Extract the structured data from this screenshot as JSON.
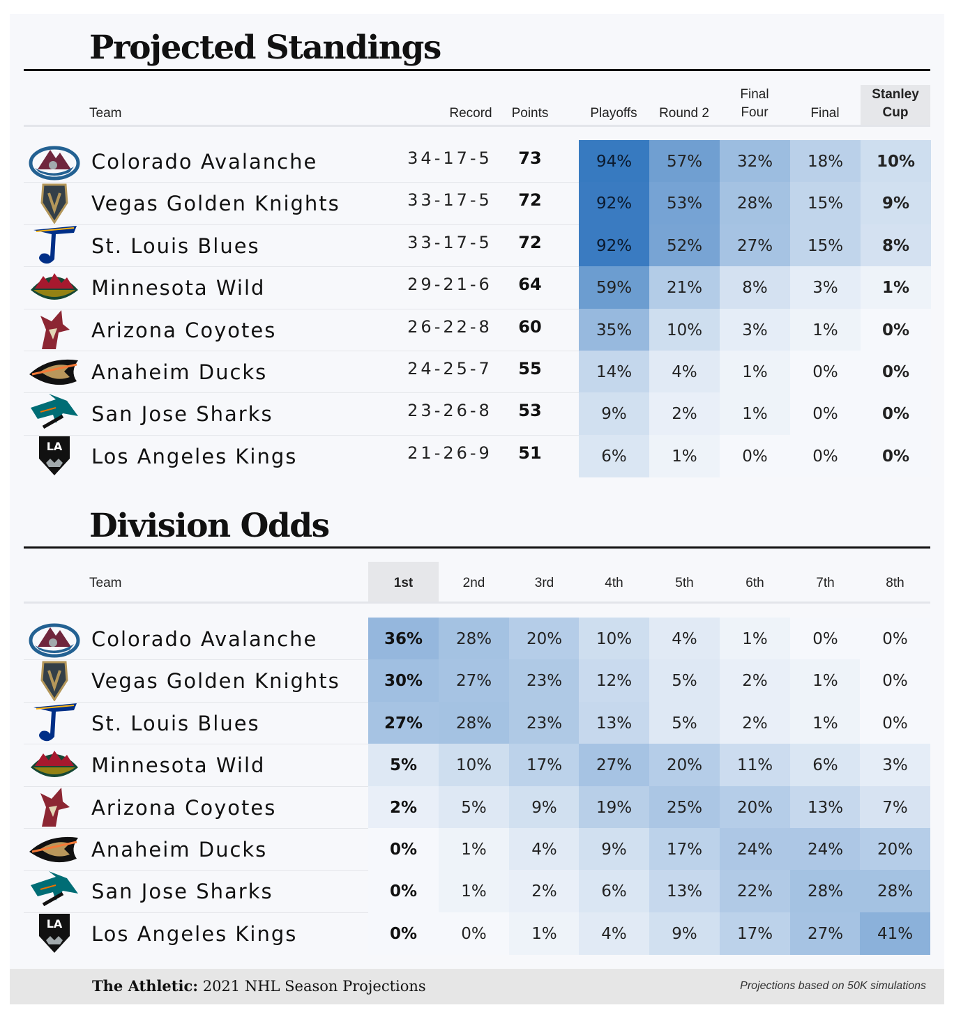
{
  "standings": {
    "title": "Projected Standings",
    "headers": {
      "team": "Team",
      "record": "Record",
      "points": "Points",
      "playoffs": "Playoffs",
      "round2": "Round 2",
      "final_four_1": "Final",
      "final_four_2": "Four",
      "final": "Final",
      "cup_1": "Stanley",
      "cup_2": "Cup"
    }
  },
  "division": {
    "title": "Division Odds",
    "headers": {
      "team": "Team",
      "places": [
        "1st",
        "2nd",
        "3rd",
        "4th",
        "5th",
        "6th",
        "7th",
        "8th"
      ]
    }
  },
  "footer": {
    "brand": "The Athletic:",
    "subtitle": "2021 NHL Season Projections",
    "note": "Projections based on 50K simulations"
  },
  "teams": [
    {
      "name": "Colorado Avalanche",
      "logo": "colorado-avalanche-logo"
    },
    {
      "name": "Vegas Golden Knights",
      "logo": "vegas-golden-knights-logo"
    },
    {
      "name": "St. Louis Blues",
      "logo": "st-louis-blues-logo"
    },
    {
      "name": "Minnesota Wild",
      "logo": "minnesota-wild-logo"
    },
    {
      "name": "Arizona Coyotes",
      "logo": "arizona-coyotes-logo"
    },
    {
      "name": "Anaheim Ducks",
      "logo": "anaheim-ducks-logo"
    },
    {
      "name": "San Jose Sharks",
      "logo": "san-jose-sharks-logo"
    },
    {
      "name": "Los Angeles Kings",
      "logo": "los-angeles-kings-logo"
    }
  ],
  "chart_data": [
    {
      "type": "table",
      "title": "Projected Standings",
      "columns": [
        "Team",
        "Record",
        "Points",
        "Playoffs",
        "Round 2",
        "Final Four",
        "Final",
        "Stanley Cup"
      ],
      "rows": [
        [
          "Colorado Avalanche",
          "34-17-5",
          73,
          94,
          57,
          32,
          18,
          10
        ],
        [
          "Vegas Golden Knights",
          "33-17-5",
          72,
          92,
          53,
          28,
          15,
          9
        ],
        [
          "St. Louis Blues",
          "33-17-5",
          72,
          92,
          52,
          27,
          15,
          8
        ],
        [
          "Minnesota Wild",
          "29-21-6",
          64,
          59,
          21,
          8,
          3,
          1
        ],
        [
          "Arizona Coyotes",
          "26-22-8",
          60,
          35,
          10,
          3,
          1,
          0
        ],
        [
          "Anaheim Ducks",
          "24-25-7",
          55,
          14,
          4,
          1,
          0,
          0
        ],
        [
          "San Jose Sharks",
          "23-26-8",
          53,
          9,
          2,
          1,
          0,
          0
        ],
        [
          "Los Angeles Kings",
          "21-26-9",
          51,
          6,
          1,
          0,
          0,
          0
        ]
      ],
      "value_unit": "%",
      "heat_color": "#2f74bd"
    },
    {
      "type": "heatmap",
      "title": "Division Odds",
      "columns": [
        "1st",
        "2nd",
        "3rd",
        "4th",
        "5th",
        "6th",
        "7th",
        "8th"
      ],
      "rows": [
        [
          "Colorado Avalanche",
          36,
          28,
          20,
          10,
          4,
          1,
          0,
          0
        ],
        [
          "Vegas Golden Knights",
          30,
          27,
          23,
          12,
          5,
          2,
          1,
          0
        ],
        [
          "St. Louis Blues",
          27,
          28,
          23,
          13,
          5,
          2,
          1,
          0
        ],
        [
          "Minnesota Wild",
          5,
          10,
          17,
          27,
          20,
          11,
          6,
          3
        ],
        [
          "Arizona Coyotes",
          2,
          5,
          9,
          19,
          25,
          20,
          13,
          7
        ],
        [
          "Anaheim Ducks",
          0,
          1,
          4,
          9,
          17,
          24,
          24,
          20
        ],
        [
          "San Jose Sharks",
          0,
          1,
          2,
          6,
          13,
          22,
          28,
          28
        ],
        [
          "Los Angeles Kings",
          0,
          0,
          1,
          4,
          9,
          17,
          27,
          41
        ]
      ],
      "value_unit": "%",
      "heat_color": "#2f74bd"
    }
  ]
}
